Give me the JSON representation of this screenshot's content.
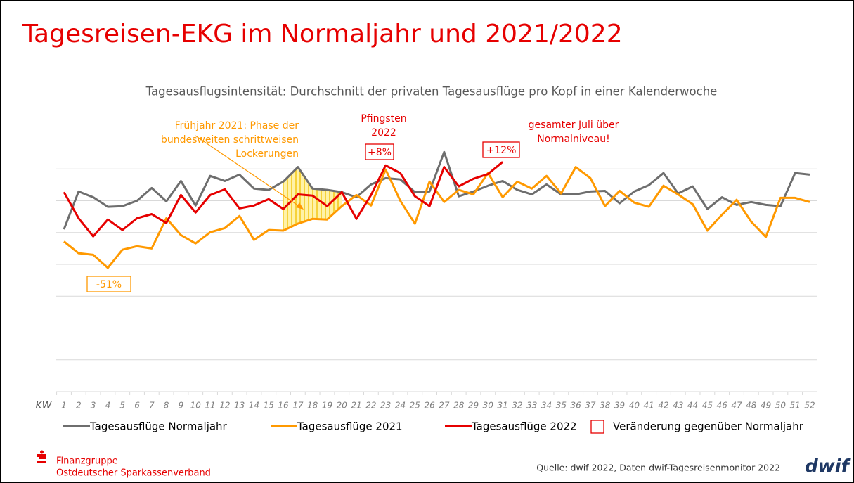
{
  "chart_data": {
    "type": "line",
    "title": "Tagesreisen-EKG im Normaljahr und 2021/2022",
    "subtitle": "Tagesausflugsintensität: Durchschnitt der privaten Tagesausflüge pro Kopf in einer Kalenderwoche",
    "x_label": "KW",
    "categories": [
      "1",
      "2",
      "3",
      "4",
      "5",
      "6",
      "7",
      "8",
      "9",
      "10",
      "11",
      "12",
      "13",
      "14",
      "15",
      "16",
      "17",
      "18",
      "19",
      "20",
      "21",
      "22",
      "23",
      "24",
      "25",
      "26",
      "27",
      "28",
      "29",
      "30",
      "31",
      "32",
      "33",
      "34",
      "35",
      "36",
      "37",
      "38",
      "39",
      "40",
      "41",
      "42",
      "43",
      "44",
      "45",
      "46",
      "47",
      "48",
      "49",
      "50",
      "51",
      "52"
    ],
    "ylim": [
      0,
      8
    ],
    "yticks": [
      0,
      1,
      2,
      3,
      4,
      5,
      6,
      7
    ],
    "grid": true,
    "shaded_weeks": [
      "16",
      "20"
    ],
    "series": [
      {
        "name": "Tagesausflüge Normaljahr",
        "color": "#6e6e6e",
        "values": [
          5.1,
          6.29,
          6.11,
          5.81,
          5.83,
          6.0,
          6.4,
          5.98,
          6.62,
          5.85,
          6.78,
          6.62,
          6.82,
          6.38,
          6.34,
          6.6,
          7.06,
          6.38,
          6.34,
          6.27,
          6.11,
          6.51,
          6.71,
          6.67,
          6.27,
          6.29,
          7.53,
          6.14,
          6.29,
          6.47,
          6.62,
          6.34,
          6.2,
          6.51,
          6.2,
          6.2,
          6.29,
          6.31,
          5.92,
          6.29,
          6.49,
          6.87,
          6.23,
          6.45,
          5.74,
          6.11,
          5.87,
          5.96,
          5.87,
          5.83,
          6.87,
          6.82
        ]
      },
      {
        "name": "Tagesausflüge  2021",
        "color": "#ff9900",
        "values": [
          4.72,
          4.35,
          4.3,
          3.89,
          4.46,
          4.57,
          4.5,
          5.45,
          4.92,
          4.66,
          5.01,
          5.14,
          5.52,
          4.77,
          5.08,
          5.06,
          5.28,
          5.43,
          5.41,
          5.83,
          6.18,
          5.85,
          6.98,
          6.0,
          5.28,
          6.6,
          5.96,
          6.34,
          6.2,
          6.87,
          6.11,
          6.6,
          6.38,
          6.78,
          6.23,
          7.06,
          6.71,
          5.83,
          6.31,
          5.94,
          5.81,
          6.47,
          6.2,
          5.89,
          5.06,
          5.56,
          6.03,
          5.34,
          4.86,
          6.09,
          6.09,
          5.96
        ]
      },
      {
        "name": "Tagesausflüge  2022",
        "color": "#e60000",
        "values": [
          6.27,
          5.45,
          4.88,
          5.41,
          5.08,
          5.45,
          5.58,
          5.3,
          6.18,
          5.63,
          6.18,
          6.36,
          5.76,
          5.85,
          6.05,
          5.74,
          6.2,
          6.16,
          5.83,
          6.27,
          5.43,
          6.18,
          7.11,
          6.87,
          6.14,
          5.83,
          7.06,
          6.45,
          6.69,
          6.84,
          7.22,
          null,
          null,
          null,
          null,
          null,
          null,
          null,
          null,
          null,
          null,
          null,
          null,
          null,
          null,
          null,
          null,
          null,
          null,
          null,
          null,
          null
        ]
      }
    ],
    "change_legend": "Veränderung gegenüber Normaljahr",
    "annotations": [
      {
        "lines": [
          "Frühjahr 2021: Phase der",
          "bundesweiten schrittweisen",
          "Lockerungen"
        ],
        "color": "#ff9900"
      },
      {
        "lines": [
          "Pfingsten",
          "2022"
        ],
        "color": "#e60000"
      },
      {
        "lines": [
          "gesamter Juli über",
          "Normalniveau!"
        ],
        "color": "#e60000"
      }
    ],
    "change_labels": [
      {
        "value": -51,
        "label": "-51%",
        "color": "#ff9900"
      },
      {
        "value": 8,
        "label": "+8%",
        "color": "#e60000"
      },
      {
        "value": 12,
        "label": "+12%",
        "color": "#e60000"
      }
    ]
  },
  "footer": {
    "org_line1": "Finanzgruppe",
    "org_line2": "Ostdeutscher Sparkassenverband",
    "source": "Quelle: dwif 2022, Daten dwif-Tagesreisenmonitor 2022",
    "logo": "dwif"
  }
}
